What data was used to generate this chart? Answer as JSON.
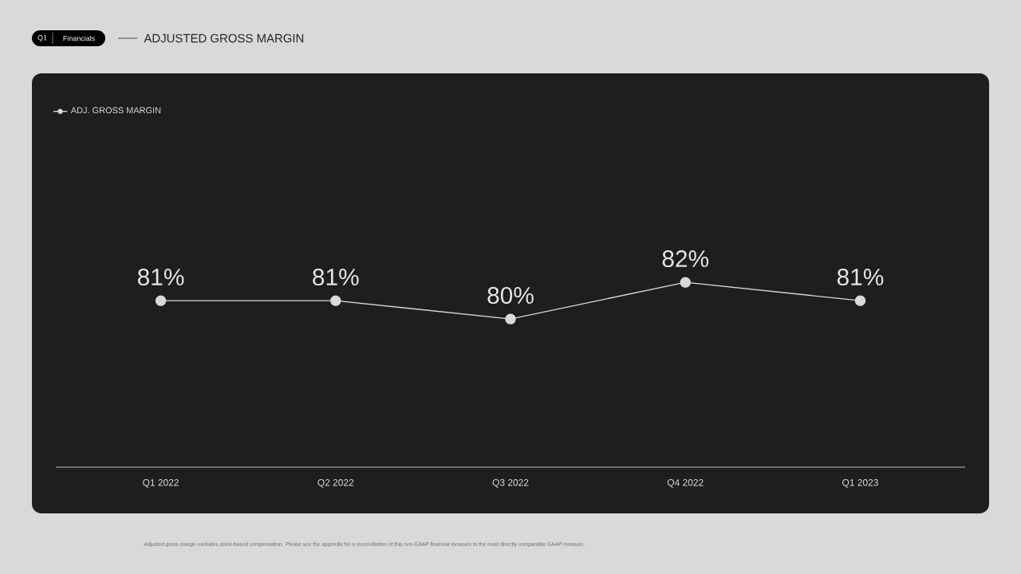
{
  "chart_data": {
    "type": "line",
    "title": "ADJUSTED GROSS MARGIN",
    "annotations": [
      "Q1",
      "Financials",
      "Adjusted gross margin excludes stock-based compensation. Please see the appendix for a reconciliation of this non-GAAP financial measure to the most directly comparable GAAP measure."
    ],
    "categories": [
      "Q1 2022",
      "Q2 2022",
      "Q3 2022",
      "Q4 2022",
      "Q1 2023"
    ],
    "series": [
      {
        "name": "ADJ. GROSS MARGIN",
        "color": "#d9d9d9",
        "values": [
          81,
          81,
          80,
          82,
          81
        ],
        "value_labels": [
          "81%",
          "81%",
          "80%",
          "82%",
          "81%"
        ]
      }
    ],
    "marker": "circle",
    "line_style": "solid",
    "legend": "top left",
    "grid": false,
    "tick_labels": "x"
  }
}
